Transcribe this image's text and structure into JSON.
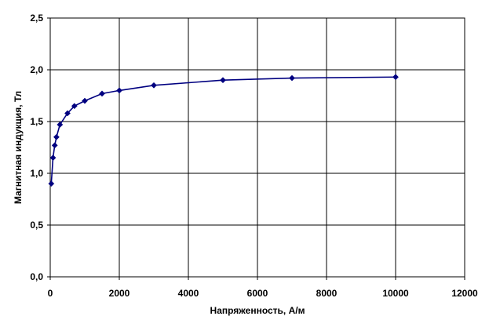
{
  "chart_data": {
    "type": "line",
    "title": "",
    "xlabel": "Напряженность, А/м",
    "ylabel": "Магнитная индукция, Тл",
    "xlim": [
      0,
      12000
    ],
    "ylim": [
      0,
      2.5
    ],
    "x_ticks": [
      0,
      2000,
      4000,
      6000,
      8000,
      10000,
      12000
    ],
    "x_tick_labels": [
      "0",
      "2000",
      "4000",
      "6000",
      "8000",
      "10000",
      "12000"
    ],
    "y_ticks": [
      0,
      0.5,
      1.0,
      1.5,
      2.0,
      2.5
    ],
    "y_tick_labels": [
      "0,0",
      "0,5",
      "1,0",
      "1,5",
      "2,0",
      "2,5"
    ],
    "grid": true,
    "legend": "none",
    "series": [
      {
        "color": "#000080",
        "marker": "diamond",
        "points": [
          [
            30,
            0.9
          ],
          [
            80,
            1.15
          ],
          [
            130,
            1.27
          ],
          [
            180,
            1.35
          ],
          [
            280,
            1.47
          ],
          [
            500,
            1.58
          ],
          [
            700,
            1.65
          ],
          [
            1000,
            1.7
          ],
          [
            1500,
            1.77
          ],
          [
            2000,
            1.8
          ],
          [
            3000,
            1.85
          ],
          [
            5000,
            1.9
          ],
          [
            7000,
            1.92
          ],
          [
            10000,
            1.93
          ]
        ]
      }
    ]
  }
}
